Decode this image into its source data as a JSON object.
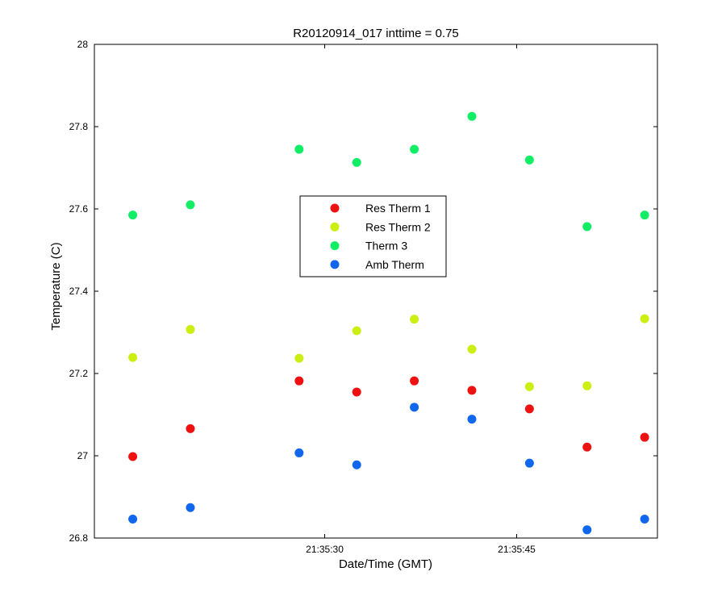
{
  "chart_data": {
    "type": "scatter",
    "title": "R20120914_017 inttime = 0.75",
    "xlabel": "Date/Time (GMT)",
    "ylabel": "Temperature (C)",
    "x_unit": "time of day (GMT)",
    "x_ticks": [
      "21:35:30",
      "21:35:45"
    ],
    "xlim": [
      "21:35:12",
      "21:35:56"
    ],
    "ylim": [
      26.8,
      28
    ],
    "y_ticks": [
      "26.8",
      "27",
      "27.2",
      "27.4",
      "27.6",
      "27.8",
      "28"
    ],
    "grid": false,
    "legend_position": "center",
    "x": [
      "21:35:15",
      "21:35:19.5",
      "21:35:28",
      "21:35:32.5",
      "21:35:37",
      "21:35:41.5",
      "21:35:46",
      "21:35:50.5",
      "21:35:55"
    ],
    "series": [
      {
        "name": "Res Therm 1",
        "color": "#ee1111",
        "x": [
          "21:35:15",
          "21:35:19.5",
          "21:35:28",
          "21:35:32.5",
          "21:35:37",
          "21:35:41.5",
          "21:35:46",
          "21:35:50.5",
          "21:35:55"
        ],
        "values": [
          26.998,
          27.066,
          27.182,
          27.155,
          27.182,
          27.159,
          27.114,
          27.021,
          27.045
        ]
      },
      {
        "name": "Res Therm 2",
        "color": "#ccee11",
        "x": [
          "21:35:15",
          "21:35:19.5",
          "21:35:28",
          "21:35:32.5",
          "21:35:37",
          "21:35:41.5",
          "21:35:46",
          "21:35:50.5",
          "21:35:55"
        ],
        "values": [
          27.239,
          27.307,
          27.237,
          27.304,
          27.332,
          27.259,
          27.168,
          27.17,
          27.333
        ]
      },
      {
        "name": "Therm 3",
        "color": "#11ee66",
        "x": [
          "21:35:15",
          "21:35:19.5",
          "21:35:28",
          "21:35:32.5",
          "21:35:37",
          "21:35:41.5",
          "21:35:46",
          "21:35:50.5",
          "21:35:55"
        ],
        "values": [
          27.585,
          27.61,
          27.745,
          27.713,
          27.745,
          27.825,
          27.719,
          27.557,
          27.585
        ]
      },
      {
        "name": "Amb Therm",
        "color": "#1166ee",
        "x": [
          "21:35:15",
          "21:35:19.5",
          "21:35:28",
          "21:35:32.5",
          "21:35:37",
          "21:35:41.5",
          "21:35:46",
          "21:35:50.5",
          "21:35:55"
        ],
        "values": [
          26.846,
          26.874,
          27.007,
          26.978,
          27.118,
          27.089,
          26.982,
          26.82,
          26.846
        ]
      }
    ]
  }
}
